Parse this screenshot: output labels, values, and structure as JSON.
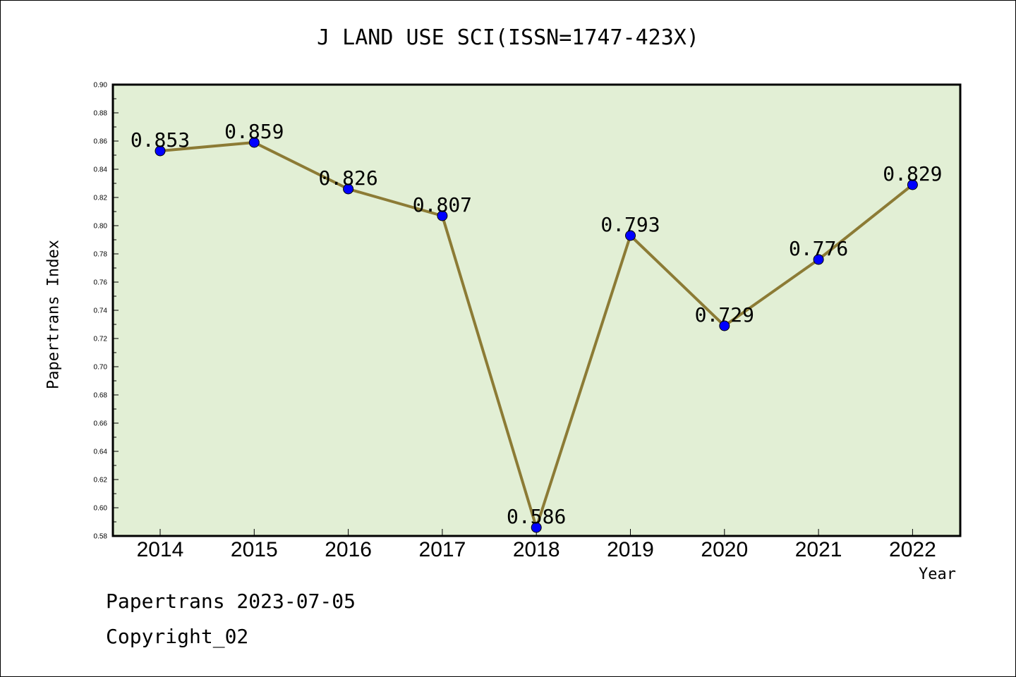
{
  "title": "J LAND USE SCI(ISSN=1747-423X)",
  "footer": {
    "line1": "Papertrans 2023-07-05",
    "line2": "Copyright_02"
  },
  "chart_data": {
    "type": "line",
    "title": "J LAND USE SCI(ISSN=1747-423X)",
    "xlabel": "Year",
    "ylabel": "Papertrans Index",
    "categories": [
      "2014",
      "2015",
      "2016",
      "2017",
      "2018",
      "2019",
      "2020",
      "2021",
      "2022"
    ],
    "values": [
      0.853,
      0.859,
      0.826,
      0.807,
      0.586,
      0.793,
      0.729,
      0.776,
      0.829
    ],
    "labels": [
      "0.853",
      "0.859",
      "0.826",
      "0.807",
      "0.586",
      "0.793",
      "0.729",
      "0.776",
      "0.829"
    ],
    "ylim": [
      0.58,
      0.9
    ],
    "yticks": [
      "0.58",
      "0.60",
      "0.62",
      "0.64",
      "0.66",
      "0.68",
      "0.70",
      "0.72",
      "0.74",
      "0.76",
      "0.78",
      "0.80",
      "0.82",
      "0.84",
      "0.86",
      "0.88",
      "0.90"
    ],
    "grid": false,
    "colors": {
      "plot_background": "#e2efd5",
      "line": "#8c7b35",
      "marker": "#0000ff"
    }
  }
}
